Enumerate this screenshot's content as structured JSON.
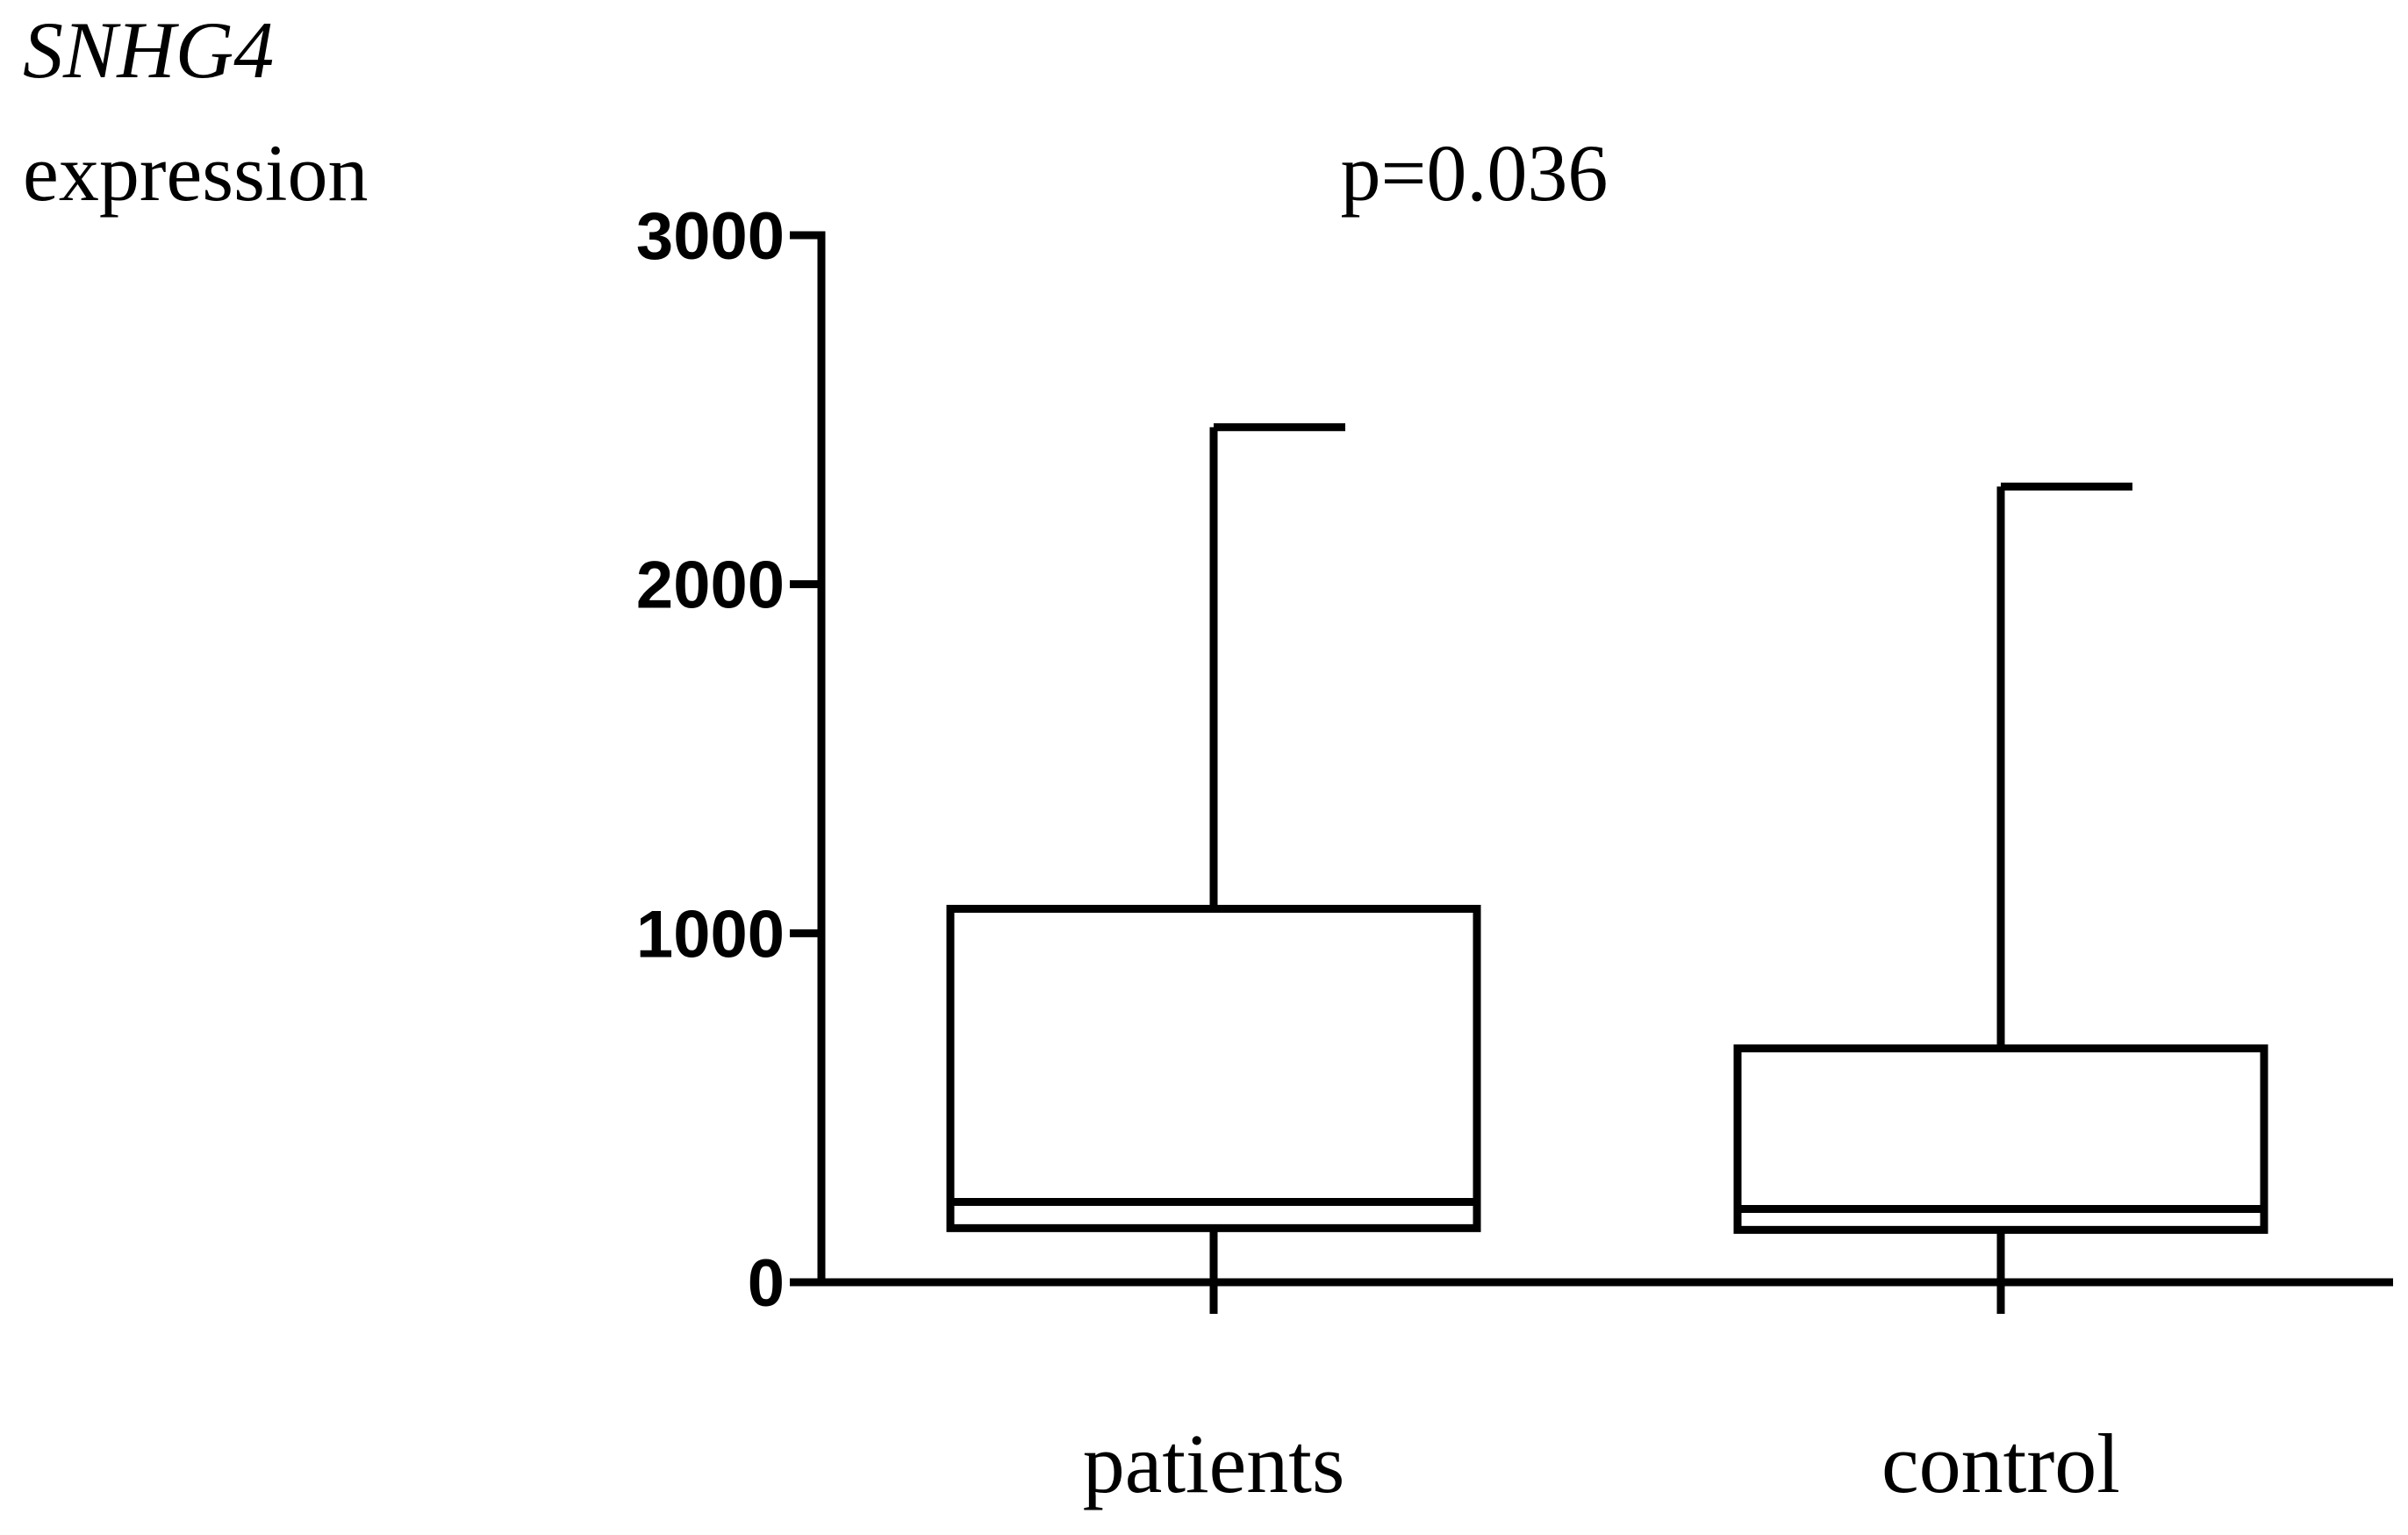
{
  "chart_data": {
    "type": "box",
    "ylabel": [
      "SNHG4",
      "expression"
    ],
    "annotation": "p=0.036",
    "categories": [
      "patients",
      "control"
    ],
    "min": [
      0,
      0
    ],
    "q1": [
      155,
      150
    ],
    "median": [
      230,
      210
    ],
    "q3": [
      1070,
      670
    ],
    "max": [
      2450,
      2280
    ],
    "color": "#000000",
    "ylim": [
      0,
      3000
    ],
    "yticks": [
      0,
      1000,
      2000,
      3000
    ]
  }
}
